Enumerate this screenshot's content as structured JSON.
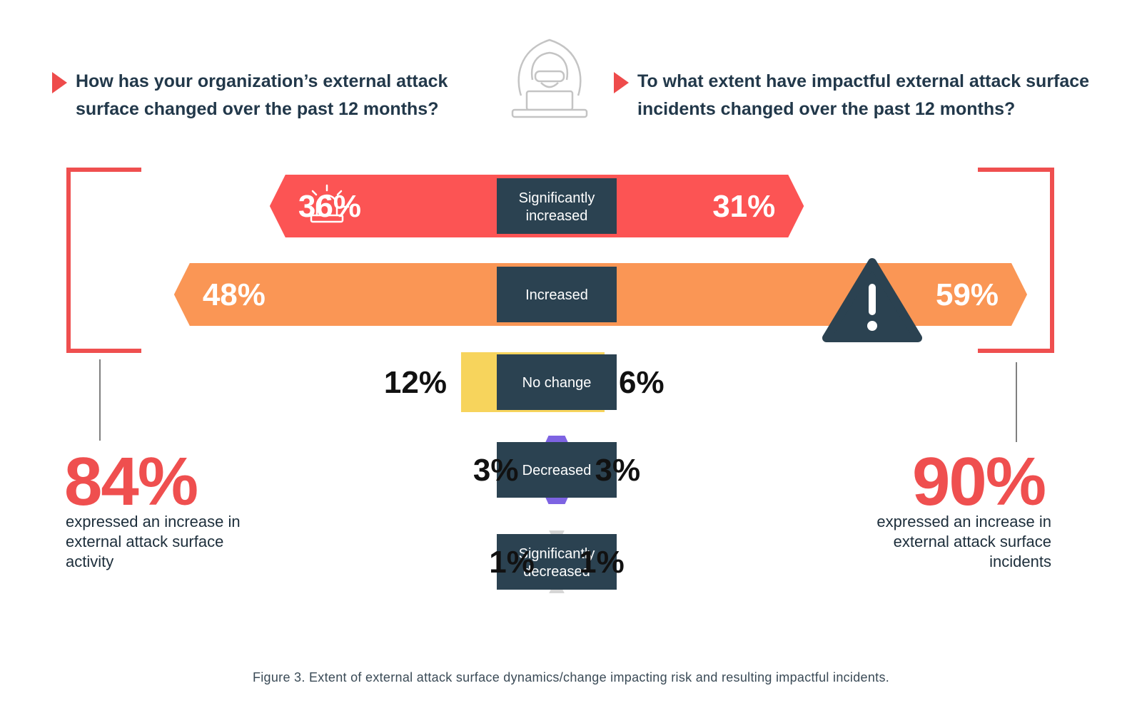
{
  "questions": {
    "left": "How has your organization’s external attack surface changed over the past 12 months?",
    "right": "To what extent have impactful external attack surface incidents changed over the past 12 months?"
  },
  "chart_data": {
    "type": "bar",
    "categories": [
      "Significantly increased",
      "Increased",
      "No change",
      "Decreased",
      "Significantly decreased"
    ],
    "series": [
      {
        "name": "",
        "values": [
          36,
          48,
          12,
          3,
          1
        ]
      },
      {
        "name": "",
        "values": [
          31,
          59,
          6,
          3,
          1
        ]
      }
    ],
    "value_labels": {
      "left": [
        "36%",
        "48%",
        "12%",
        "3%",
        "1%"
      ],
      "right": [
        "31%",
        "59%",
        "6%",
        "3%",
        "1%"
      ]
    },
    "colors": [
      "#fc5454",
      "#fa9655",
      "#f7d45c",
      "#7d63e2",
      "#d6d6d6"
    ],
    "label_box_color": "#2b4251",
    "title": "",
    "xlabel": "",
    "ylabel": ""
  },
  "summary": {
    "left": {
      "value": "84%",
      "text": "expressed an increase in external attack surface activity"
    },
    "right": {
      "value": "90%",
      "text": "expressed an increase in external attack surface incidents"
    }
  },
  "caption": "Figure 3.  Extent of external attack surface dynamics/change impacting risk and resulting impactful incidents.",
  "icons": [
    "hacker-icon",
    "siren-icon",
    "warning-icon",
    "play-triangle-icon"
  ],
  "accent_color": "#ef4f4f"
}
